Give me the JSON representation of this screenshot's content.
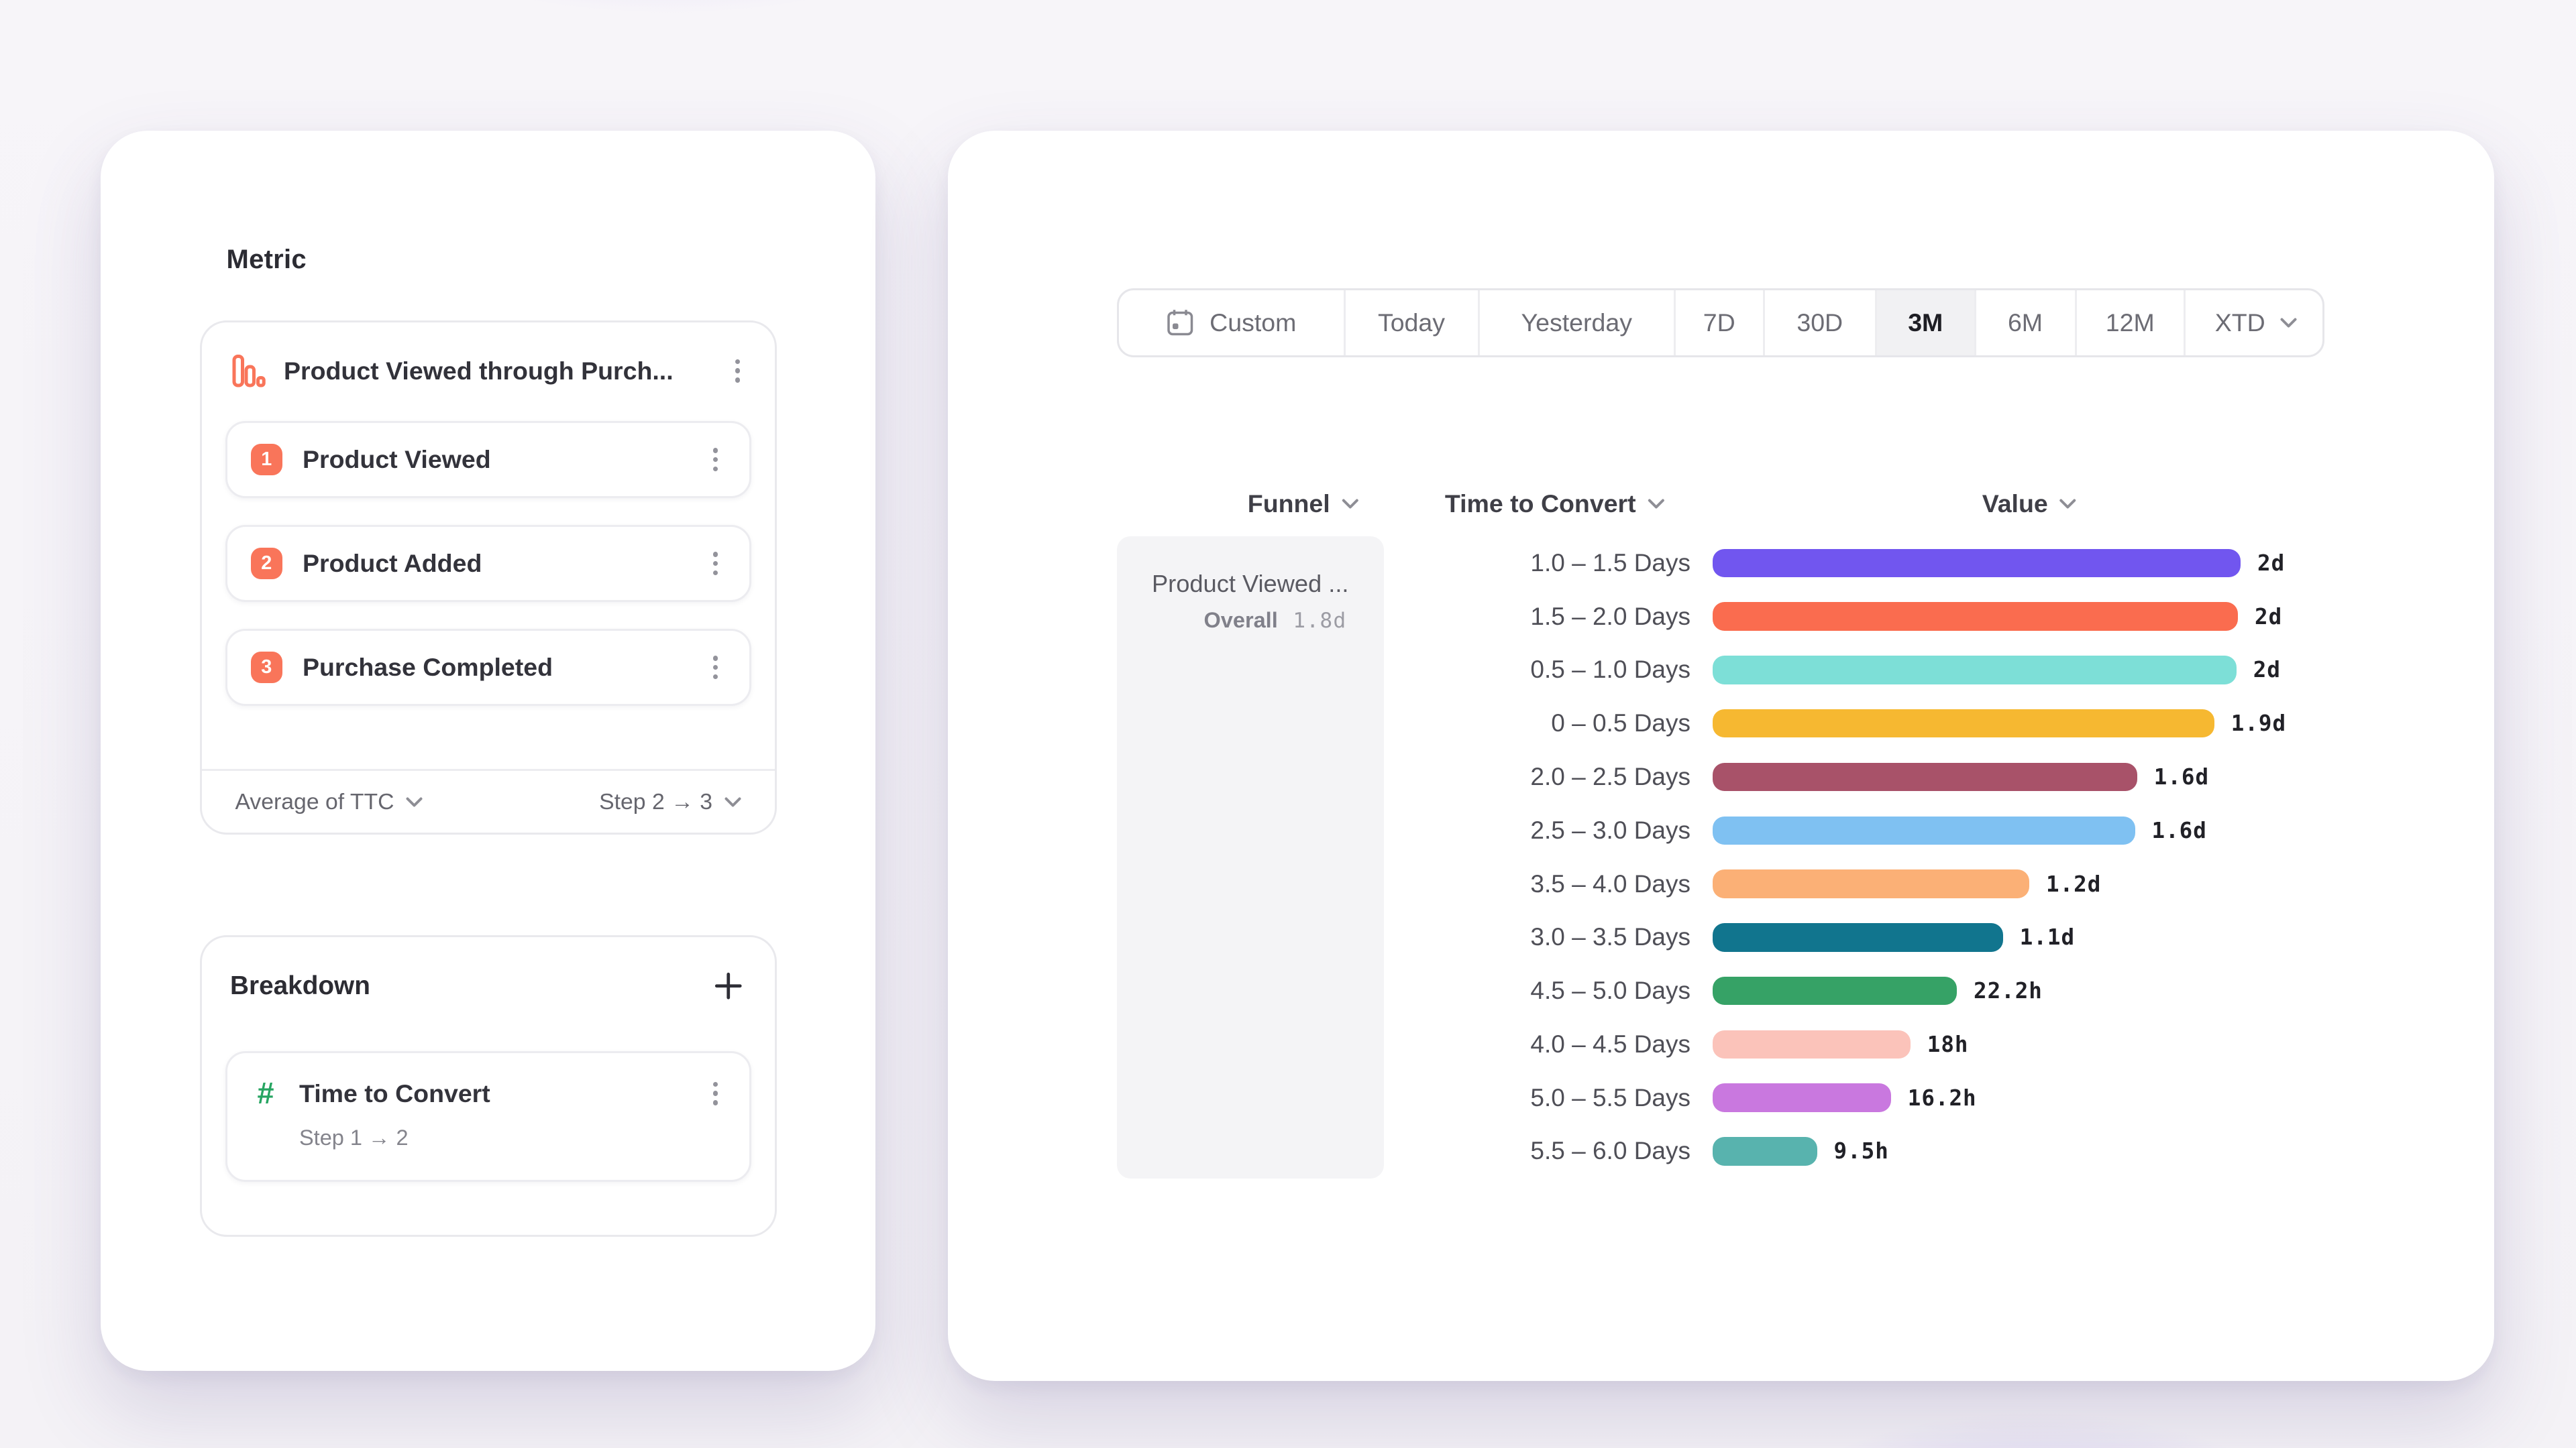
{
  "theme": {
    "accent_orange": "#F9755A",
    "accent_green": "#27A562",
    "selected_range_bg": "#F1F1F3",
    "funnel_cell_bg": "#F4F4F6",
    "background_glow": "#9278EB"
  },
  "left_panel": {
    "metric_title": "Metric",
    "funnel": {
      "icon": "funnel-chart-icon",
      "title": "Product Viewed through Purch...",
      "steps": [
        {
          "number": "1",
          "label": "Product Viewed"
        },
        {
          "number": "2",
          "label": "Product Added"
        },
        {
          "number": "3",
          "label": "Purchase Completed"
        }
      ],
      "measurement": "Average of TTC",
      "step_range": "Step 2 → 3"
    },
    "breakdown": {
      "title": "Breakdown",
      "item": {
        "icon_glyph": "#",
        "label": "Time to Convert",
        "sublabel": "Step 1 → 2"
      }
    }
  },
  "right_panel": {
    "date_picker": {
      "selected": "3M",
      "options": [
        {
          "label": "Custom",
          "calendar_icon": true
        },
        {
          "label": "Today"
        },
        {
          "label": "Yesterday"
        },
        {
          "label": "7D"
        },
        {
          "label": "30D"
        },
        {
          "label": "3M",
          "selected": true
        },
        {
          "label": "6M"
        },
        {
          "label": "12M"
        },
        {
          "label": "XTD",
          "chevron": true
        }
      ]
    },
    "columns": [
      "Funnel",
      "Time to Convert",
      "Value"
    ],
    "funnel_cell": {
      "name": "Product Viewed ...",
      "overall_label": "Overall",
      "overall_value": "1.8d"
    }
  },
  "chart_data": {
    "type": "bar",
    "orientation": "horizontal",
    "title": "Time to Convert breakdown (Funnel: Product Viewed ..., Overall 1.8d)",
    "xlabel": "Value",
    "ylabel": "Time to Convert",
    "x_max_hours": 48,
    "grid": false,
    "legend": "none",
    "categories": [
      "1.0 – 1.5 Days",
      "1.5 – 2.0 Days",
      "0.5 – 1.0 Days",
      "0 – 0.5 Days",
      "2.0 – 2.5 Days",
      "2.5 – 3.0 Days",
      "3.5 – 4.0 Days",
      "3.0 – 3.5 Days",
      "4.5 – 5.0 Days",
      "4.0 – 4.5 Days",
      "5.0 – 5.5 Days",
      "5.5 – 6.0 Days"
    ],
    "values": [
      "2d",
      "2d",
      "2d",
      "1.9d",
      "1.6d",
      "1.6d",
      "1.2d",
      "1.1d",
      "22.2h",
      "18h",
      "16.2h",
      "9.5h"
    ],
    "values_hours": [
      48,
      47.8,
      47.6,
      45.6,
      38.6,
      38.4,
      28.8,
      26.4,
      22.2,
      18,
      16.2,
      9.5
    ],
    "bar_pct": [
      100,
      99.5,
      99.2,
      95,
      80.4,
      80,
      60,
      55,
      46.3,
      37.5,
      33.8,
      19.8
    ],
    "colors": [
      "#7156EF",
      "#FA6C4F",
      "#7DDFD7",
      "#F6B831",
      "#A85269",
      "#7FC1F2",
      "#FBB076",
      "#11758E",
      "#36A266",
      "#FBC3BA",
      "#C978DF",
      "#58B3AE"
    ]
  }
}
